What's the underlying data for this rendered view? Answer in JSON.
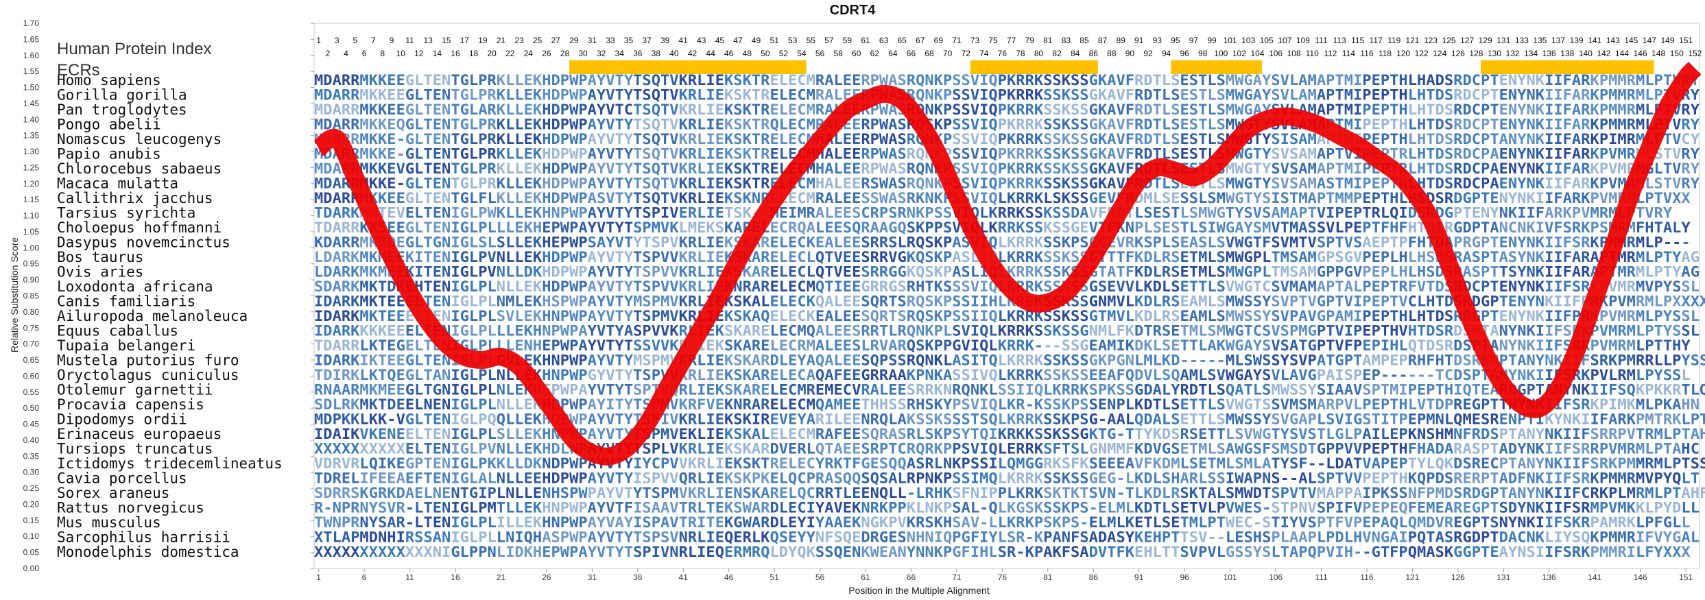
{
  "chart_data": {
    "type": "line",
    "title": "CDRT4",
    "xlabel": "Position in the Multiple Alignment",
    "ylabel": "Relative Substitution Score",
    "ylim": [
      0.0,
      1.7
    ],
    "xlim": [
      0.5,
      152.5
    ],
    "yticks": [
      "0.00",
      "0.05",
      "0.10",
      "0.15",
      "0.20",
      "0.25",
      "0.30",
      "0.35",
      "0.40",
      "0.45",
      "0.50",
      "0.55",
      "0.60",
      "0.65",
      "0.70",
      "0.75",
      "0.80",
      "0.85",
      "0.90",
      "0.95",
      "1.00",
      "1.05",
      "1.10",
      "1.15",
      "1.20",
      "1.25",
      "1.30",
      "1.35",
      "1.40",
      "1.45",
      "1.50",
      "1.55",
      "1.60",
      "1.65",
      "1.70"
    ],
    "xticks": [
      "1",
      "6",
      "11",
      "16",
      "21",
      "26",
      "31",
      "36",
      "41",
      "46",
      "51",
      "56",
      "61",
      "66",
      "71",
      "76",
      "81",
      "86",
      "91",
      "96",
      "101",
      "106",
      "111",
      "116",
      "121",
      "126",
      "131",
      "136",
      "141",
      "146",
      "151"
    ],
    "header_label": "Human Protein Index",
    "ecr_label": "ECRs",
    "position_row_top": [
      "1",
      "3",
      "5",
      "7",
      "9",
      "11",
      "13",
      "15",
      "17",
      "19",
      "21",
      "23",
      "25",
      "27",
      "29",
      "31",
      "33",
      "35",
      "37",
      "39",
      "41",
      "43",
      "45",
      "47",
      "49",
      "51",
      "53",
      "55",
      "57",
      "59",
      "61",
      "63",
      "65",
      "67",
      "69",
      "71",
      "73",
      "75",
      "77",
      "79",
      "81",
      "83",
      "85",
      "87",
      "89",
      "91",
      "93",
      "95",
      "97",
      "99",
      "101",
      "103",
      "105",
      "107",
      "109",
      "111",
      "113",
      "115",
      "117",
      "119",
      "121",
      "123",
      "125",
      "127",
      "129",
      "131",
      "133",
      "135",
      "137",
      "139",
      "141",
      "143",
      "145",
      "147",
      "149",
      "151"
    ],
    "position_row_bottom": [
      "2",
      "4",
      "6",
      "8",
      "10",
      "12",
      "14",
      "16",
      "18",
      "20",
      "22",
      "24",
      "26",
      "28",
      "30",
      "32",
      "34",
      "36",
      "38",
      "40",
      "42",
      "44",
      "46",
      "48",
      "50",
      "52",
      "54",
      "56",
      "58",
      "60",
      "62",
      "64",
      "66",
      "68",
      "70",
      "72",
      "74",
      "76",
      "78",
      "80",
      "82",
      "84",
      "86",
      "88",
      "90",
      "92",
      "94",
      "96",
      "98",
      "100",
      "102",
      "104",
      "106",
      "108",
      "110",
      "112",
      "114",
      "116",
      "118",
      "120",
      "122",
      "124",
      "126",
      "128",
      "130",
      "132",
      "134",
      "136",
      "138",
      "140",
      "142",
      "144",
      "146",
      "148",
      "150",
      "152"
    ],
    "ecr_regions": [
      [
        29,
        54
      ],
      [
        73,
        86
      ],
      [
        95,
        104
      ],
      [
        129,
        147
      ]
    ],
    "series": [
      {
        "x": [
          1,
          3,
          5,
          7,
          9,
          11,
          13,
          15,
          17,
          19,
          21,
          23,
          25,
          27,
          29,
          31,
          33,
          35,
          37,
          39,
          41,
          43,
          45,
          47,
          49,
          51,
          53,
          55,
          57,
          59,
          61,
          63,
          65,
          67,
          69,
          71,
          73,
          75,
          77,
          79,
          81,
          83,
          85,
          87,
          89,
          91,
          93,
          95,
          97,
          99,
          101,
          103,
          105,
          107,
          109,
          111,
          113,
          115,
          117,
          119,
          121,
          123,
          125,
          127,
          129,
          131,
          133,
          135,
          137,
          139,
          141,
          143,
          145,
          147,
          149,
          151,
          152
        ],
        "y": [
          1.31,
          1.34,
          1.22,
          1.09,
          0.97,
          0.86,
          0.77,
          0.7,
          0.66,
          0.65,
          0.66,
          0.63,
          0.56,
          0.48,
          0.4,
          0.36,
          0.35,
          0.38,
          0.45,
          0.55,
          0.65,
          0.75,
          0.85,
          0.96,
          1.06,
          1.15,
          1.23,
          1.3,
          1.37,
          1.43,
          1.46,
          1.48,
          1.46,
          1.39,
          1.29,
          1.16,
          1.04,
          0.94,
          0.87,
          0.83,
          0.83,
          0.86,
          0.93,
          1.02,
          1.12,
          1.21,
          1.25,
          1.24,
          1.22,
          1.25,
          1.31,
          1.37,
          1.4,
          1.41,
          1.4,
          1.38,
          1.35,
          1.32,
          1.28,
          1.24,
          1.18,
          1.09,
          0.95,
          0.8,
          0.67,
          0.57,
          0.51,
          0.5,
          0.56,
          0.68,
          0.84,
          1.0,
          1.17,
          1.31,
          1.44,
          1.53,
          1.56
        ],
        "color": "#ee0000"
      }
    ],
    "ecr_color": "#ffc000",
    "sequences": [
      {
        "species": "Homo sapiens",
        "seq": "MDARRMKKEEGLTENTGLPRKLLEKHDPWPAYVTYTSQTVKRLIEKSKTRELECMRALEERPWASRQNKPSSVIQPKRRKSSKSSGKAVFRDTLSESTLSMWGAYSVLAMAPTMIPEPTHLHADSRDCPTENYNKIIFARKPMMRMLPTVRY"
      },
      {
        "species": "Gorilla gorilla",
        "seq": "MDARRMKKEEGLTENTGLPRKLLEKHDPWPAYVTYTSQTVKRLIEKSKTRELECMRALEERPWASRQNKPSSVIQPKRRKSSKSSGKAVFRDTLSESTLSMWGAYSVLAMAPTMIPEPTHLHTDSRDCPTENYNKIIFARKPMMRMLPTVRY"
      },
      {
        "species": "Pan troglodytes",
        "seq": "MDARRMKKEEGLTENTGLARKLLEKHDPWPAYVTCTSQTVKRLIEKSKTRELECMRALEERPWASRQNKPSSVIQPKRRKSSKSSGKAVFRDTLSESTLSMWGAYSVLAMAPTMIPEPTHLHTDSRDCPTENYNKIIFARKPMMRMLPTVRY"
      },
      {
        "species": "Pongo abelii",
        "seq": "MDARRMKKEQGLTENTGLPRKLLEKHDPWPAYVTYTSQTVKRLIEKSKTRQLECMRALEERPWASRQSKPSSVIQPKRRKSSKSSGKAVFRDTLSESTLSMWGTYSVLAMAPTMIPEPTHLHTDSRDCPTENYNKIIFARKPMMRMLPTVRY"
      },
      {
        "species": "Nomascus leucogenys",
        "seq": "MEARRMKKE-GLTENTGLPRKLLEKHDPWPAYVTYTSQTVKRLIEKSKTRELECMHALEERPWASRQNKPSSVIQPKRRKSSKSSGKAVFRDTLSESTLSMWGTYSISAMAPTMIPEPTHLHTDSRDCPTANYNKIIFARKPIMRMLFTVCY"
      },
      {
        "species": "Papio anubis",
        "seq": "MDARRMKKE-GLTENTGLPRKLLEKHDPWPAYVTYTSQTVKRLIEKSKTRELECMHALEERPWASRQNKPSSVIQPKRRKSSKSSGKAVFRDTLSESTLSMWGTYSVSAMAPTVIPEPTRLHTDSRDCPAENYNKIIFARKPVMRMLSTVRY"
      },
      {
        "species": "Chlorocebus sabaeus",
        "seq": "MDARRMKKEVGLTENTGLPRKLLEKHDPWPAYVTYTSQTVKRLIEKSKTRELECMHALEERPWASRQNKPSSVIQPKRRKSSKSSGKAVFRDTLSESTLSMWGTYSVSAMAPTMIPEPTRLHTDSRDCPAENYNKIIFARKPVMRMGLTVRY"
      },
      {
        "species": "Macaca mulatta",
        "seq": "MDARRMKKE-GLTENTGLPRKLLEKHDPWPAYVTYTSQTVKRLIEKSKTRELECMHALEERSWASRQNKPSSVIQPKRRKSSKSSGKAVFRDTLSESTLSMWGTYSVSAMASTMIPEPTHLHTDSRDCPAENYNKIIFARKPVMRMLSTVRY"
      },
      {
        "species": "Callithrix jacchus",
        "seq": "MDARRMKKEEGLTENTGLFLKLLEKHDPWPASVTYTSQTVKRLIEKSKNRELECMRALEESSWASRKNKPSSVIQLKRRKLSKSSGEVFRDMLSESSLSMWGTYSISTMAPTMMPEPTHLHSDSRDGPTENYNKIIFARKPVMRMLPTVXX"
      },
      {
        "species": "Tarsius syrichta",
        "seq": "TDARKMKTEVELTENIGLPWKLLEKHNPWPAYVTYTSPIVERLIETSK--MEIMRALEESCRPSRNKPSSVIQLKRRKSSKSSDAVFRDTLSESTLSMWGTYSVSAMAPTVIPEPTRLQIDSRDGPTENYNKIIFARKPVMRMLPTVRY"
      },
      {
        "species": "Choloepus hoffmanni",
        "seq": "TDARRKKSEEGLTENIGLPLLLEKHEPWPAYVTYTSPMVKLMEKSKARELECRQALEESQRAAGQSKPPSVIQLKRRKSSKSSGEVTFKNPLSESTLSIWGAYSMVTMASSVLPEPTFHFHTDSRGDPTANCNKIVFSRKPSMRMFHTALY"
      },
      {
        "species": "Dasypus novemcinctus",
        "seq": "KDARRMKRDEGLTGNIGLSLSLLEKHEPWPSAYVTYTSPVKRLIEKSKARELECKEALEESRRSLRQSKPASVIQLKRRKSSKPSGGEVRKSPLSEASLSVWGTFSVMTVSPTVSAEPTPFHTDAPRGPTENYNKIIFSRKPMMRMLP---"
      },
      {
        "species": "Bos taurus",
        "seq": "LDARKMKMEEKITENIGLPVNLLEKHDPWPAYVTYTSPVVKRLIEKSKARELECLQTVEESRRVGKQSKPASLIQLKRRKSSKSSGTTTFKDLRSETMLSMWGPLTMSAMGPSGVPEPLHLHSDSRASPTASYNKIIFARAPTMRMLPTYAG"
      },
      {
        "species": "Ovis aries",
        "seq": "LDARKMKMEEKITENIGLPVNLLDKHDPWPAYVTYTSPVVKRLIEKSKARELECLQTVEESRRGGKQSKPASLIQLKRRKSSKSSGTATFKDLRSETMLSMWGPLTMSAMGPPGVPEPLHLHSDSRASPTTSYNKIIFARAPTMRMLPTYAG"
      },
      {
        "species": "Loxodonta africana",
        "seq": "SDARKMKTDKEHTENIGLPLNLLEKHDPWPAYVTYTSPVVKRLIEKNRARELECMQTIEEGRRGSRHTKSSSVIQLKRRKSSKSSGSEVVLKDLSETTLSVWGTCSVMAMAPTALPEPTRFVTDSRDCPTENYNKIIFSRKPVMRMVPYSSL"
      },
      {
        "species": "Canis familiaris",
        "seq": "IDARKMKTEEELTENIGLPLNMLEKHSPWPAYVTYMSPMVKRLIEKSKALELECKQALEESQRTSRQSKPSSIIHLKRRKSSKSSGNMVLKDLRSEAMLSMWSSYSVPTVGPTVIPEPTVCLHTDSRDGPTENYNKIIFPRKPVMRMLPXXXX"
      },
      {
        "species": "Ailuropoda melanoleuca",
        "seq": "IDARKMKTEEELTENIGLPLSVLEKHNPWPAYVTYTSPMVKRLIEKSKAQELECKEALEESQRTSRQSKPSSIIQLKRRKSSKSSGTMVLKDLRSEAMLSMWSSYSVPAVGPAMIPEPTHLHTDSRDGPTENYNKIIFPRKPVMRMLPYSSL"
      },
      {
        "species": "Equus caballus",
        "seq": "IDARKKKKEEELTENIGLPLLLEKHNPWPAYVTYASPVVKRLIEKSKARELECMQALEESRRTLRQNKPLSVIQLKRRKSSKSSGNMLFKDTRSETMLSMWGTCSVSPMGPTVIPEPTHVHTDSRDSPTANYNKIIFSRKPVMRMLPTYSSL"
      },
      {
        "species": "Tupaia belangeri",
        "seq": "TDARRLKTEGELTENIGLPLLLENHEPWPAYVTYTSSVVKRLIEKSKARELECRMALEESLRVARQSKPPGVIQLKRRK---SSGEAMIKDKLSETTLAKWGAYSVSATGPTVFPEPIHLQTDSRDSPTANYNKIIFSRKPVMRMLPTTHY"
      },
      {
        "species": "Mustela putorius furo",
        "seq": "IDARKIKTEEGLTENIGLPLGVLEKHNPWPAYVTYMSPMVKRLIEKSKARDLEYAQALEESQPSSRQNKLASITQLKRRKSSKSSGKPGNLMLKD-----MLSWSSYSVPATGPTAMPEPRHFHTDSRENPTANYNKIIFSRKPMRRLLPYSSL"
      },
      {
        "species": "Oryctolagus cuniculus",
        "seq": "TDIRKLKTQEGLTANIGLPLNLLEKHNPWPGYVTYTSPVVKRLIEKSKARELECAQAFEEGRRAAKPNKASSIVQLKRRKSSKSSEEAFQDVLSQAMLSVWGAYSVLAVGPAISPEP------TCDSPTANYNKIIFSRKPVLRMLPYSSL"
      },
      {
        "species": "Otolemur garnettii",
        "seq": "RNAARMKMEEGLTGNIGLPLNLEKHEPWPAYVTYTSPTVQRLIEKSKARELECMREMECVRALEESRRKNRQNKLSSIIQLKRRKSPKSSGDALYRDTLSQATLSMWSSYSIAAVSPTMIPEPTHIQTEARDGPTANYNKIIFSQKPKKRTLQYXXX"
      },
      {
        "species": "Procavia capensis",
        "seq": "SDLRKMKTDEELNENIGLPLNLLEKHDPWPAYITYTSPMVKRFVEKNRARELECMQAMEETHHSSRHSKYPSVIQLKR-KSSKPSSENPLKDTLSETTLSVWGTSSVMSMARPVLPEPTHLVTDPREGPTTNYNKIIFSRKPIMKMLPKAHN"
      },
      {
        "species": "Dipodomys ordii",
        "seq": "MDPKKLKK-VGLTENIGLPQQLLEKHDPWPAYVTYTSPIVKRLIEKSKIREVEYARILEENRQLAKSSKSSSTSQLKRRKSSKPSG-AALQDALSETTLSMWSSYSVGAPLSVIGSTITPEPMNLQMESRENPTIKYNKIIFARKPMTRKLPTAHS"
      },
      {
        "species": "Erinaceus europaeus",
        "seq": "IDAIKVKENEELTENIGLPLSLLEKHNPWPAYVTYTSPMVEKLIEKSKALELECMRAFEESQRASRLSKPSYTQIKRKKSSKSSGKTG-TTYKDSRSETTLSVWGTYSVSTLGLPAILEPKNSHMNFRDSPTANYNKIIFSRRPVTRMLPTAHF"
      },
      {
        "species": "Tursiops truncatus",
        "seq": "XXXXXXXXXXELTENIGLPVNLLEKHDLWPAYVTYTSPLVKRLIEKSKARDVERLQTAEESRPTCRQRKPPSVIQLERRKSFTSLGNMMFKDVGSETMLSAWGSFSMSDTGPPVVPEPTHFHADARASPTADYNKIIFSRRPVMRMLPTAHC"
      },
      {
        "species": "Ictidomys tridecemlineatus",
        "seq": "VDRVRLQIKEGPTENIGLPKKLLDKNDPWPAYVTYIYCPVVKRLIEKSKTRELECYRKTFGESQQASRLNKPSSILQMGGRKSFKSEEEAVFKDMLSETMLSMLATYSF--LDATVAPEPTYLQKDSRECPTANYNKIIFSRKPMMRMLPTSSL"
      },
      {
        "species": "Cavia porcellus",
        "seq": "TDRELIFEEAEFTENIGLALNLLEEHDPWPAYVTYISPVVQRLIEKSKPKELQCPRASQQSQSALRPNKPSSIMQLKRRKSSKSSGEG-LKDLSHARLSSIWAPNS--ALSPTVVPEPTHKQPDSRERPTADFNKIIFSRKPMMRMVPYQLT"
      },
      {
        "species": "Sorex araneus",
        "seq": "SDRRSKGRKDAELNENTGIPLNLLENHSPWPAYVTYTSPMVKRLIENSKARELQCRRTLEENQLL-LRHKSFNIPPLKRKSKTKTSVN-TLKDLRSKTALSMWDTSPVTVMAPPAIPKSSNFPMDSRDGPTANYNKIIFCRKPLMRMLPTAHF"
      },
      {
        "species": "Rattus norvegicus",
        "seq": "R-NPRNYSVR-LTENIGLPMTLLEKHNPWPAYVTFISAAVTRLTEKSWARDLECIYAVEKNRKPPKLNKPSAL-QLKGSKSSKPS-ELMLKDTLSETVLPVWES-STPNVSPIFVPEPEQFEMEAREGPTSDYNKIIFSRMPVMKKLPYDLL"
      },
      {
        "species": "Mus musculus",
        "seq": "TWNPRNYSAR-LTENIGLPLILLEKHNPWPAYVAYISPAVTRITEKGWARDLEYIYAAEKNGKPVKRSKHSAV-LLKRKPSKPS-ELMLKETLSETMLPTWEC-STIYVSPTFVPEPAQLQMDVREGPTSNYNKIIFSKRPAMRKLPFGLL"
      },
      {
        "species": "Sarcophilus harrisii",
        "seq": "XTLAPMDNHIRSSANIGLPLLNIQHASPWPAYVTYTSPSVNRLIEQERLKQSEYYNFSQEDRGESNHNIQPGFIYLSR-KPANFSADASYKEHPTTSV--LESHSPLAAPLPDLHVNGAIPQTASRGDPTDACNKLIYSQKPMMRIFVYGAL"
      },
      {
        "species": "Monodelphis domestica",
        "seq": "XXXXXXXXXXXXXNIGLPPNLIDKHEPWPAYVTYTSPIVNRLIEQERMRQLDYQKSSQENKWEANYNNKPGFIHLSR-KPAKFSADVTFKEHLTTSVPVLGSSYSLTAPQPVIH--GTFPQMASKGGPTEAYNSIIFSRKPMMRILFYXXX"
      }
    ]
  }
}
